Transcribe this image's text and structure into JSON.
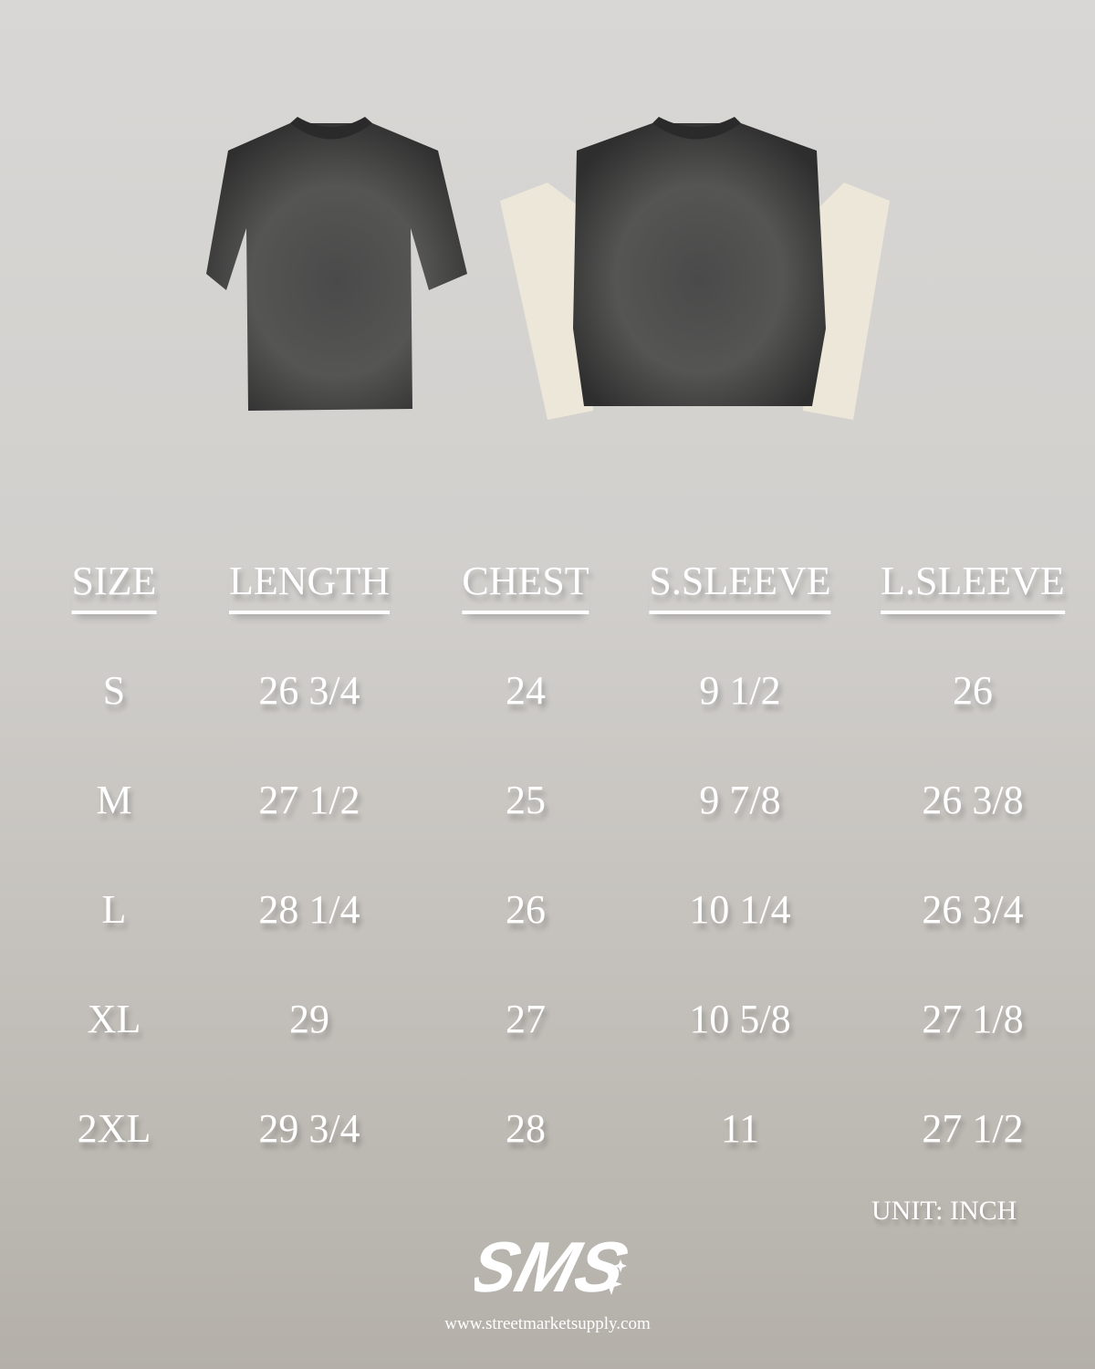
{
  "table": {
    "headers": [
      "SIZE",
      "LENGTH",
      "CHEST",
      "S.SLEEVE",
      "L.SLEEVE"
    ],
    "rows": [
      [
        "S",
        "26 3/4",
        "24",
        "9 1/2",
        "26"
      ],
      [
        "M",
        "27 1/2",
        "25",
        "9 7/8",
        "26 3/8"
      ],
      [
        "L",
        "28 1/4",
        "26",
        "10 1/4",
        "26 3/4"
      ],
      [
        "XL",
        "29",
        "27",
        "10 5/8",
        "27 1/8"
      ],
      [
        "2XL",
        "29 3/4",
        "28",
        "11",
        "27 1/2"
      ]
    ]
  },
  "unit_label": "UNIT: INCH",
  "logo_text": "SMS",
  "website": "www.streetmarketsupply.com",
  "colors": {
    "shirt": "#3a3a3a",
    "sleeve": "#ede7da",
    "text": "#ffffff"
  }
}
